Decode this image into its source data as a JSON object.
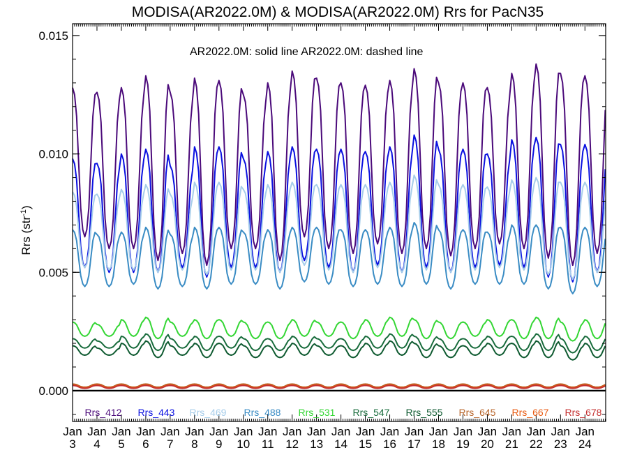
{
  "chart_data": {
    "type": "line",
    "title": "MODISA(AR2022.0M) & MODISA(AR2022.0M)  Rrs for PacN35",
    "ylabel_main": "Rrs (str",
    "ylabel_sup": "-1",
    "ylabel_close": ")",
    "annotation": "AR2022.0M: solid line   AR2022.0M: dashed line",
    "xlim": [
      2003.0,
      2024.85
    ],
    "ylim": [
      -0.0013,
      0.0155
    ],
    "yticks": [
      {
        "value": 0.0,
        "label": "0.000"
      },
      {
        "value": 0.005,
        "label": "0.005"
      },
      {
        "value": 0.01,
        "label": "0.010"
      },
      {
        "value": 0.015,
        "label": "0.015"
      }
    ],
    "month_label": "Jan",
    "years": [
      "3",
      "4",
      "5",
      "6",
      "7",
      "8",
      "9",
      "10",
      "11",
      "12",
      "13",
      "14",
      "15",
      "16",
      "17",
      "18",
      "19",
      "20",
      "21",
      "22",
      "23",
      "24"
    ],
    "zero_line": 0.0,
    "series": [
      {
        "name": "Rrs_412",
        "color": "#4b0a7a",
        "low": 0.006,
        "high": 0.0128,
        "peaks": [
          0.0128,
          0.0126,
          0.0128,
          0.0133,
          0.0126,
          0.0132,
          0.0131,
          0.0125,
          0.013,
          0.0135,
          0.0132,
          0.013,
          0.0129,
          0.0131,
          0.0136,
          0.013,
          0.013,
          0.0128,
          0.0134,
          0.0138,
          0.0134,
          0.0133
        ],
        "troughs": [
          0.0065,
          0.006,
          0.006,
          0.0055,
          0.0058,
          0.0053,
          0.006,
          0.006,
          0.0055,
          0.0065,
          0.006,
          0.0058,
          0.0062,
          0.0058,
          0.006,
          0.0057,
          0.006,
          0.0062,
          0.006,
          0.0056,
          0.0053,
          0.0058
        ]
      },
      {
        "name": "Rrs_443",
        "color": "#0a10e0",
        "low": 0.005,
        "high": 0.0102,
        "peaks": [
          0.0098,
          0.0096,
          0.01,
          0.0102,
          0.0095,
          0.0103,
          0.0103,
          0.0098,
          0.0101,
          0.0103,
          0.0102,
          0.0102,
          0.0101,
          0.0103,
          0.0108,
          0.0102,
          0.0102,
          0.01,
          0.0106,
          0.0107,
          0.0104,
          0.0104
        ],
        "troughs": [
          0.0052,
          0.005,
          0.005,
          0.005,
          0.0052,
          0.0048,
          0.0052,
          0.0052,
          0.005,
          0.0055,
          0.0052,
          0.005,
          0.0053,
          0.005,
          0.0052,
          0.005,
          0.0052,
          0.0053,
          0.0052,
          0.0048,
          0.0046,
          0.005
        ]
      },
      {
        "name": "Rrs_469",
        "color": "#a6cdea",
        "low": 0.005,
        "high": 0.0087,
        "peaks": [
          0.0084,
          0.0083,
          0.0085,
          0.0087,
          0.0083,
          0.0088,
          0.0088,
          0.0085,
          0.0087,
          0.0088,
          0.0087,
          0.0087,
          0.0087,
          0.0088,
          0.0091,
          0.0087,
          0.0087,
          0.0086,
          0.0089,
          0.009,
          0.0088,
          0.0088
        ],
        "troughs": [
          0.0052,
          0.0051,
          0.0051,
          0.005,
          0.0051,
          0.0049,
          0.0051,
          0.0051,
          0.005,
          0.0053,
          0.0051,
          0.005,
          0.0052,
          0.005,
          0.0051,
          0.005,
          0.0051,
          0.0052,
          0.0051,
          0.0049,
          0.0047,
          0.005
        ]
      },
      {
        "name": "Rrs_488",
        "color": "#3a8cc4",
        "low": 0.0045,
        "high": 0.0068,
        "peaks": [
          0.0068,
          0.0066,
          0.0067,
          0.0069,
          0.0066,
          0.0069,
          0.0069,
          0.0067,
          0.0068,
          0.0069,
          0.0069,
          0.0068,
          0.0068,
          0.0069,
          0.0071,
          0.0068,
          0.0068,
          0.0067,
          0.007,
          0.007,
          0.0069,
          0.0069
        ],
        "troughs": [
          0.0044,
          0.0044,
          0.0045,
          0.0043,
          0.0044,
          0.0043,
          0.0045,
          0.0045,
          0.0043,
          0.0046,
          0.0045,
          0.0044,
          0.0045,
          0.0044,
          0.0045,
          0.0043,
          0.0045,
          0.0045,
          0.0045,
          0.0043,
          0.0041,
          0.0044
        ]
      },
      {
        "name": "Rrs_531",
        "color": "#33d633",
        "low": 0.0022,
        "high": 0.003,
        "peaks": [
          0.0029,
          0.0028,
          0.003,
          0.0031,
          0.0029,
          0.003,
          0.003,
          0.0029,
          0.0029,
          0.003,
          0.0029,
          0.0029,
          0.003,
          0.0031,
          0.003,
          0.0029,
          0.0029,
          0.003,
          0.003,
          0.0031,
          0.0029,
          0.003
        ],
        "troughs": [
          0.0023,
          0.0023,
          0.0023,
          0.0022,
          0.0023,
          0.0022,
          0.0023,
          0.0022,
          0.0022,
          0.0023,
          0.0023,
          0.0022,
          0.0023,
          0.0023,
          0.0022,
          0.0022,
          0.0023,
          0.0023,
          0.0022,
          0.0022,
          0.0021,
          0.0022
        ]
      },
      {
        "name": "Rrs_547",
        "color": "#176b3b",
        "low": 0.0017,
        "high": 0.0023,
        "peaks": [
          0.0022,
          0.0021,
          0.0023,
          0.0024,
          0.0022,
          0.0023,
          0.0023,
          0.0022,
          0.0022,
          0.0023,
          0.0022,
          0.0022,
          0.0023,
          0.0024,
          0.0023,
          0.0022,
          0.0022,
          0.0023,
          0.0023,
          0.0024,
          0.0022,
          0.0023
        ],
        "troughs": [
          0.0018,
          0.0018,
          0.0018,
          0.0017,
          0.0018,
          0.0017,
          0.0018,
          0.0017,
          0.0017,
          0.0018,
          0.0018,
          0.0017,
          0.0018,
          0.0018,
          0.0017,
          0.0017,
          0.0018,
          0.0018,
          0.0017,
          0.0017,
          0.0016,
          0.0017
        ]
      },
      {
        "name": "Rrs_555",
        "color": "#0e5a30",
        "low": 0.0015,
        "high": 0.002,
        "peaks": [
          0.0019,
          0.0018,
          0.002,
          0.0021,
          0.0019,
          0.002,
          0.002,
          0.0019,
          0.0019,
          0.002,
          0.0019,
          0.0019,
          0.002,
          0.0021,
          0.002,
          0.0019,
          0.0019,
          0.002,
          0.002,
          0.0021,
          0.0019,
          0.002
        ],
        "troughs": [
          0.0015,
          0.0015,
          0.0015,
          0.0014,
          0.0015,
          0.0014,
          0.0015,
          0.0014,
          0.0014,
          0.0015,
          0.0015,
          0.0014,
          0.0015,
          0.0015,
          0.0014,
          0.0014,
          0.0015,
          0.0015,
          0.0014,
          0.0014,
          0.0013,
          0.0014
        ]
      },
      {
        "name": "Rrs_645",
        "color": "#b8652a",
        "low": 0.00015,
        "high": 0.00028,
        "peaks": [
          0.00028
        ],
        "troughs": [
          0.00015
        ]
      },
      {
        "name": "Rrs_667",
        "color": "#e85a10",
        "low": 0.00012,
        "high": 0.00024,
        "peaks": [
          0.00024
        ],
        "troughs": [
          0.00012
        ]
      },
      {
        "name": "Rrs_678",
        "color": "#c43030",
        "low": 0.0001,
        "high": 0.00022,
        "peaks": [
          0.00022
        ],
        "troughs": [
          0.0001
        ]
      }
    ]
  }
}
